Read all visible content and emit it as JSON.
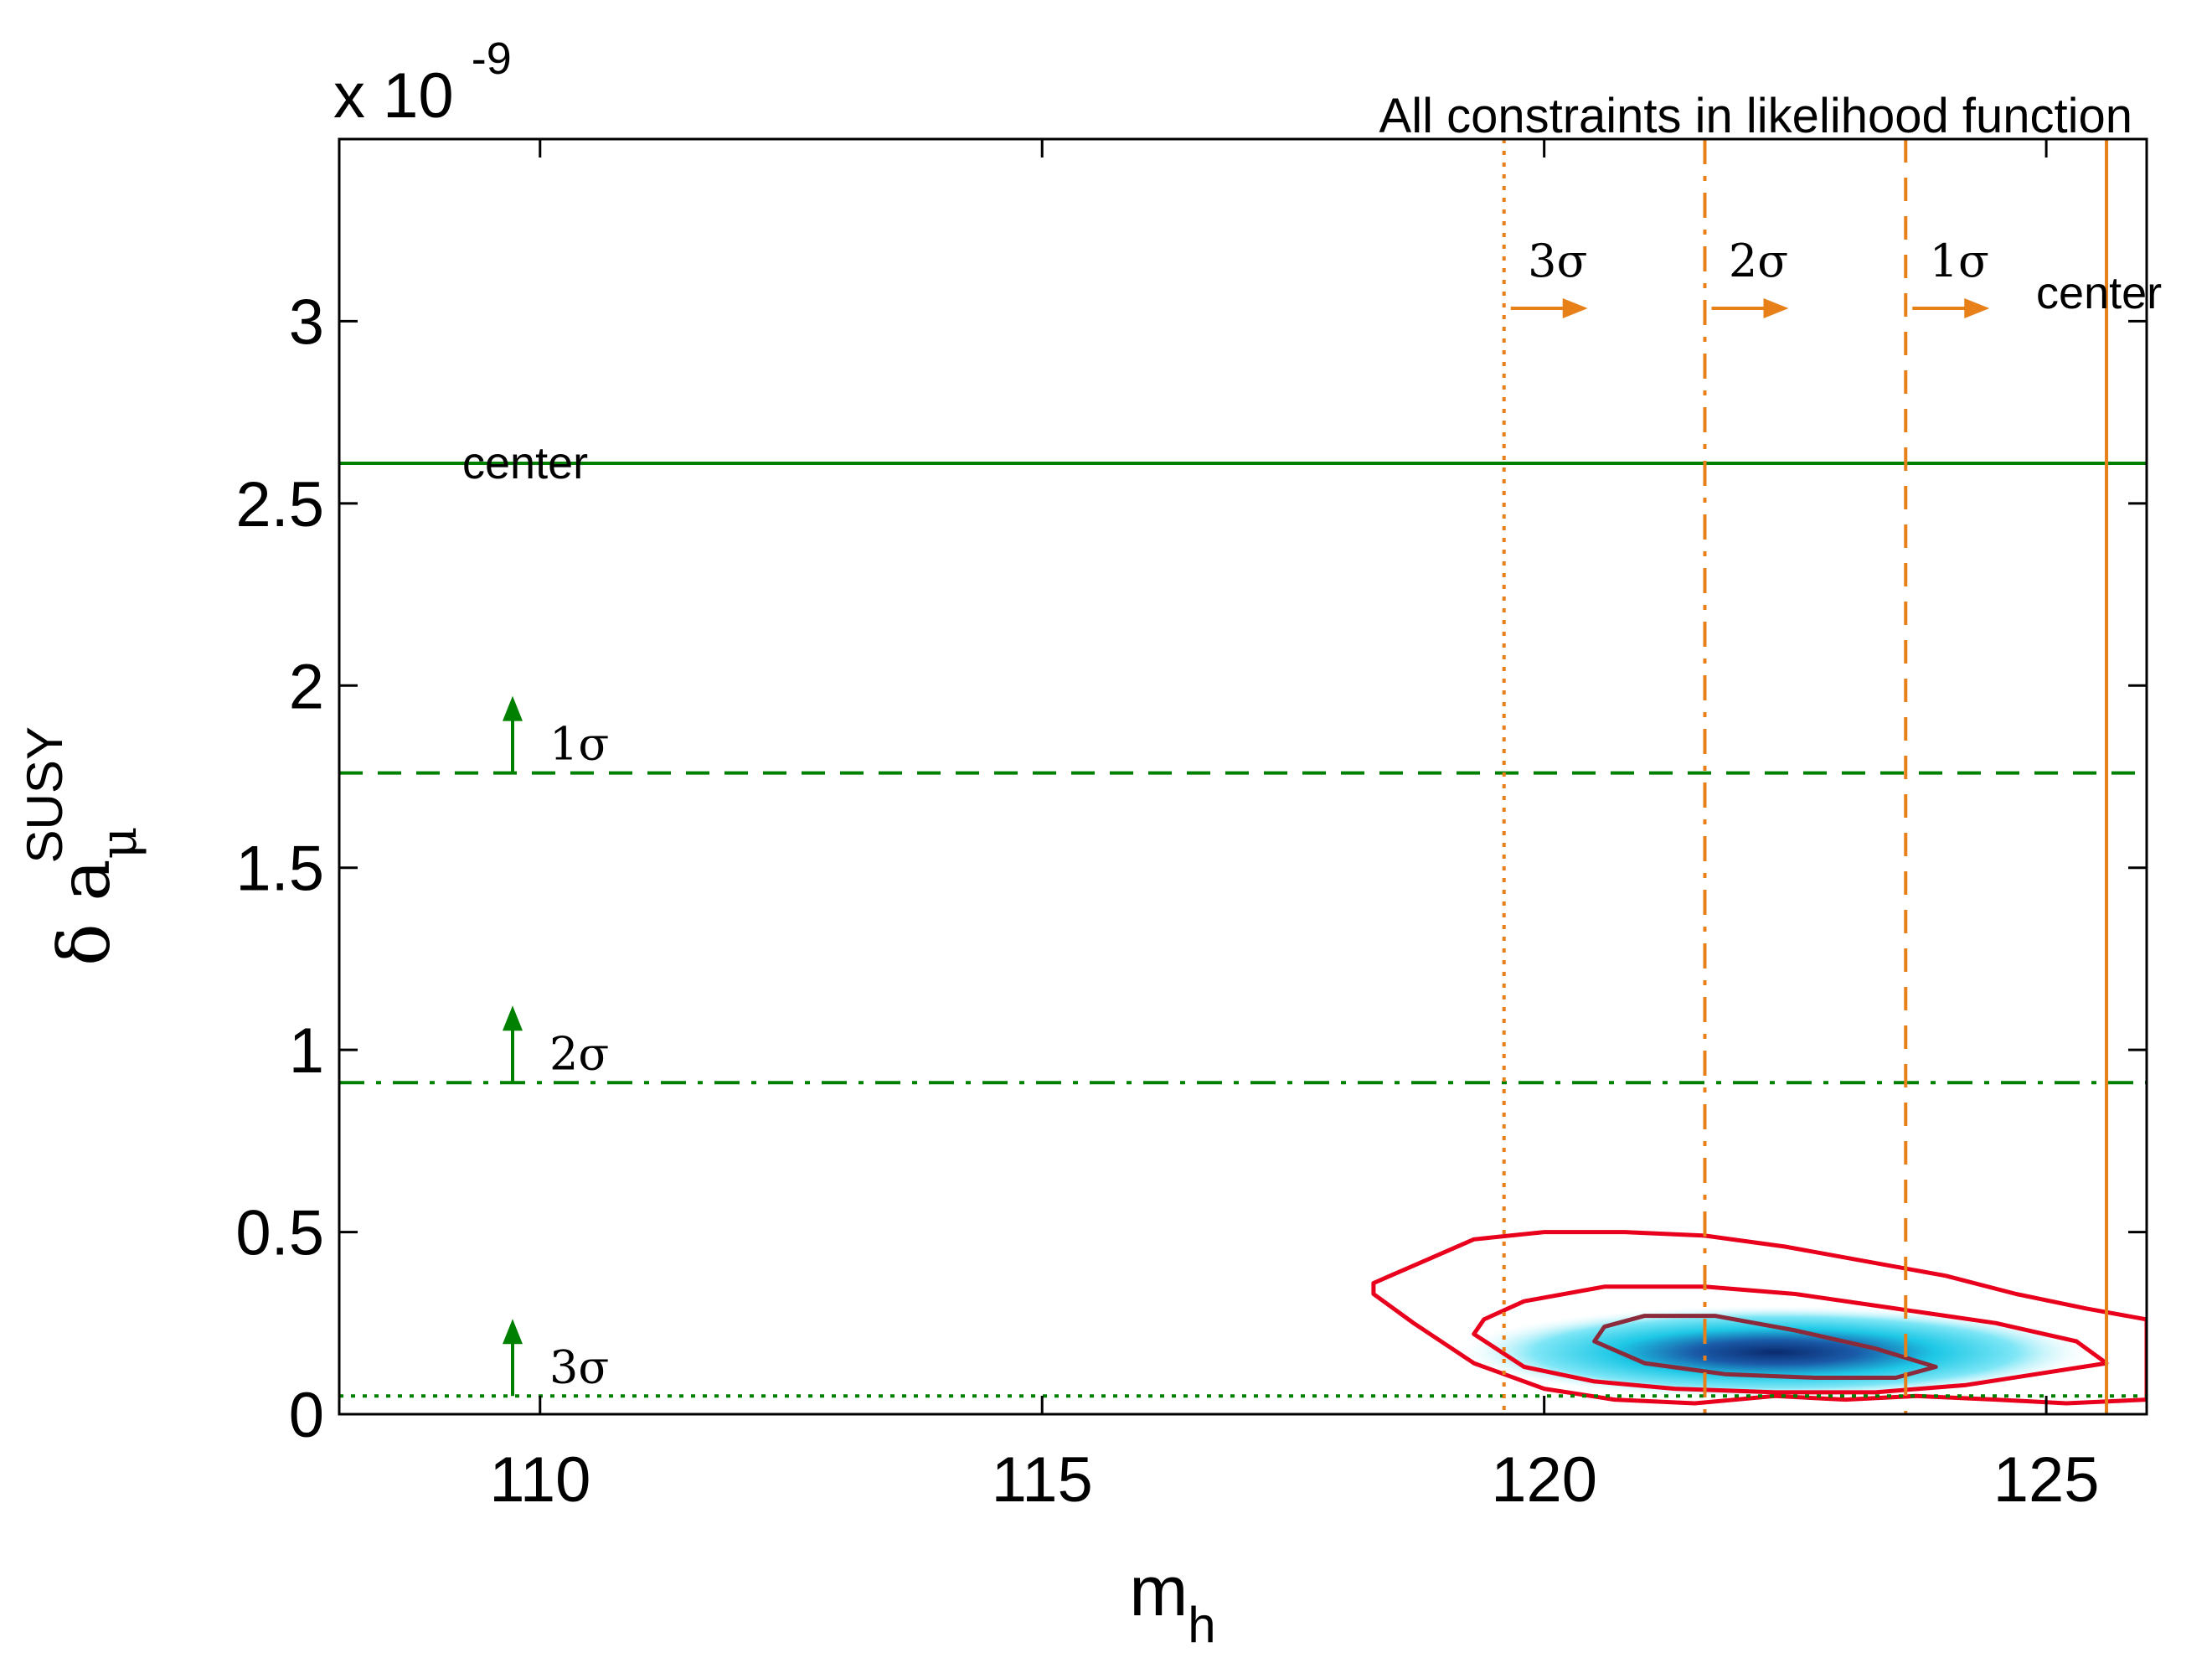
{
  "chart_data": {
    "type": "contour",
    "title": "All constraints in likelihood function",
    "xlabel": "m",
    "xlabel_sub": "h",
    "ylabel": "δ a",
    "ylabel_sub": "μ",
    "ylabel_sup": "SUSY",
    "y_multiplier_base": "x 10",
    "y_multiplier_exp": "-9",
    "xlim": [
      108,
      126
    ],
    "ylim": [
      0,
      3.5
    ],
    "xticks": [
      110,
      115,
      120,
      125
    ],
    "xtick_labels": [
      "110",
      "115",
      "120",
      "125"
    ],
    "yticks": [
      0,
      0.5,
      1,
      1.5,
      2,
      2.5,
      3
    ],
    "ytick_labels": [
      "0",
      "0.5",
      "1",
      "1.5",
      "2",
      "2.5",
      "3"
    ],
    "grid": false,
    "colors": {
      "g2_lines": "#008000",
      "mh_lines": "#e8801a",
      "contour_line": "#e8001c",
      "inner_contour": "#8b2a3a",
      "density_low": "#bff3fb",
      "density_mid": "#1ec8e6",
      "density_high": "#0a2a6e"
    },
    "horizontal_lines": [
      {
        "y": 2.61,
        "label": "center",
        "style": "solid"
      },
      {
        "y": 1.76,
        "label": "1σ",
        "style": "dashed"
      },
      {
        "y": 0.91,
        "label": "2σ",
        "style": "dashdot"
      },
      {
        "y": 0.05,
        "label": "3σ",
        "style": "dotted"
      }
    ],
    "vertical_lines": [
      {
        "x": 125.6,
        "label": "center",
        "style": "solid"
      },
      {
        "x": 123.6,
        "label": "1σ",
        "style": "dashed"
      },
      {
        "x": 121.6,
        "label": "2σ",
        "style": "dashdot"
      },
      {
        "x": 119.6,
        "label": "3σ",
        "style": "dotted"
      }
    ],
    "contours": [
      {
        "name": "outer",
        "points": [
          [
            118.3,
            0.33
          ],
          [
            118.7,
            0.25
          ],
          [
            119.3,
            0.14
          ],
          [
            120,
            0.07
          ],
          [
            120.7,
            0.04
          ],
          [
            121.5,
            0.03
          ],
          [
            122.3,
            0.05
          ],
          [
            123,
            0.04
          ],
          [
            123.7,
            0.05
          ],
          [
            124.5,
            0.04
          ],
          [
            125.2,
            0.03
          ],
          [
            126,
            0.04
          ],
          [
            126,
            0.26
          ],
          [
            125.4,
            0.29
          ],
          [
            124.7,
            0.33
          ],
          [
            124,
            0.38
          ],
          [
            123.2,
            0.42
          ],
          [
            122.4,
            0.46
          ],
          [
            121.6,
            0.49
          ],
          [
            120.8,
            0.5
          ],
          [
            120,
            0.5
          ],
          [
            119.3,
            0.48
          ],
          [
            118.8,
            0.42
          ],
          [
            118.3,
            0.36
          ]
        ]
      },
      {
        "name": "middle",
        "points": [
          [
            119.3,
            0.22
          ],
          [
            119.8,
            0.13
          ],
          [
            120.5,
            0.09
          ],
          [
            121.3,
            0.07
          ],
          [
            122.3,
            0.06
          ],
          [
            123.3,
            0.06
          ],
          [
            124.2,
            0.08
          ],
          [
            124.9,
            0.11
          ],
          [
            125.6,
            0.14
          ],
          [
            125.3,
            0.2
          ],
          [
            124.5,
            0.25
          ],
          [
            123.5,
            0.29
          ],
          [
            122.5,
            0.33
          ],
          [
            121.6,
            0.35
          ],
          [
            120.6,
            0.35
          ],
          [
            119.8,
            0.31
          ],
          [
            119.4,
            0.26
          ]
        ]
      },
      {
        "name": "inner",
        "points": [
          [
            120.5,
            0.2
          ],
          [
            121,
            0.14
          ],
          [
            121.8,
            0.11
          ],
          [
            122.7,
            0.1
          ],
          [
            123.5,
            0.1
          ],
          [
            123.9,
            0.13
          ],
          [
            123.3,
            0.18
          ],
          [
            122.5,
            0.23
          ],
          [
            121.7,
            0.27
          ],
          [
            121,
            0.27
          ],
          [
            120.6,
            0.24
          ]
        ]
      }
    ],
    "density_peak": {
      "x": 122.3,
      "y": 0.17
    }
  }
}
